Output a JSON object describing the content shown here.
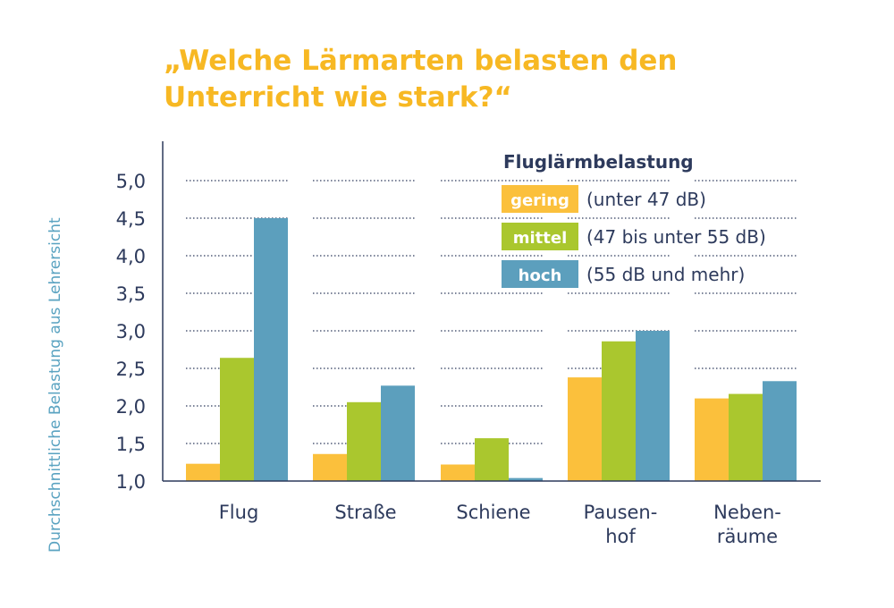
{
  "title_lines": [
    "„Welche Lärmarten belasten den",
    "Unterricht wie stark?“"
  ],
  "legend": {
    "title": "Fluglärmbelastung",
    "items": [
      {
        "label": "gering",
        "desc": "(unter 47 dB)",
        "color": "#fbc03c"
      },
      {
        "label": "mittel",
        "desc": "(47 bis unter 55 dB)",
        "color": "#aac72e"
      },
      {
        "label": "hoch",
        "desc": "(55 dB und mehr)",
        "color": "#5c9fbd"
      }
    ]
  },
  "chart_data": {
    "type": "bar",
    "title": "„Welche Lärmarten belasten den Unterricht wie stark?“",
    "xlabel": "",
    "ylabel": "Durchschnittliche Belastung aus Lehrersicht",
    "ylim": [
      1.0,
      5.0
    ],
    "yticks": [
      "1,0",
      "1,5",
      "2,0",
      "2,5",
      "3,0",
      "3,5",
      "4,0",
      "4,5",
      "5,0"
    ],
    "grid": "dotted horizontal",
    "legend_position": "top-right",
    "categories": [
      [
        "Flug"
      ],
      [
        "Straße"
      ],
      [
        "Schiene"
      ],
      [
        "Pausen-",
        "hof"
      ],
      [
        "Neben-",
        "räume"
      ]
    ],
    "series": [
      {
        "name": "gering",
        "values": [
          1.23,
          1.36,
          1.22,
          2.38,
          2.1
        ]
      },
      {
        "name": "mittel",
        "values": [
          2.64,
          2.05,
          1.57,
          2.86,
          2.16
        ]
      },
      {
        "name": "hoch",
        "values": [
          4.5,
          2.27,
          1.04,
          3.0,
          2.33
        ]
      }
    ]
  }
}
